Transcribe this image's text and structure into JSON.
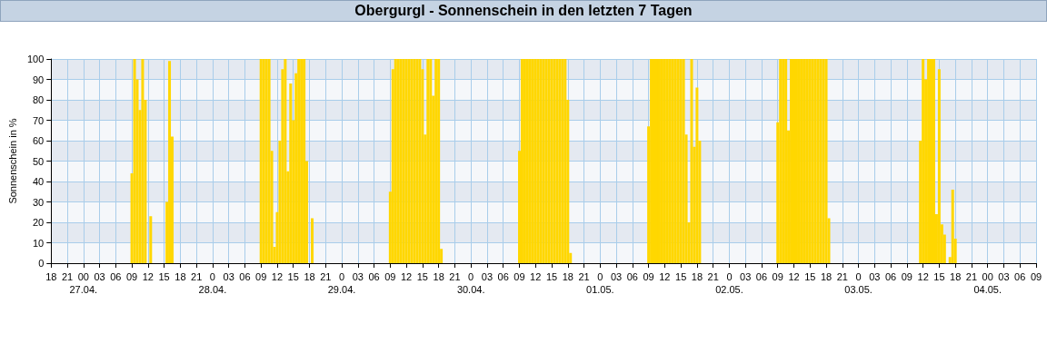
{
  "chart_data": {
    "type": "bar",
    "title": "Obergurgl - Sonnenschein in den letzten 7 Tagen",
    "ylabel": "Sonnenschein in %",
    "series": [
      {
        "color": "#ffd700",
        "x": [
          "--04-27T09:00",
          "--04-27T09:30",
          "--04-27T10:00",
          "--04-27T10:30",
          "--04-27T11:00",
          "--04-27T11:30",
          "--04-27T12:30",
          "--04-27T15:30",
          "--04-27T16:00",
          "--04-27T16:30",
          "--04-28T09:00",
          "--04-28T09:30",
          "--04-28T10:00",
          "--04-28T10:30",
          "--04-28T11:00",
          "--04-28T11:30",
          "--04-28T12:00",
          "--04-28T12:30",
          "--04-28T13:00",
          "--04-28T13:30",
          "--04-28T14:00",
          "--04-28T14:30",
          "--04-28T15:00",
          "--04-28T15:30",
          "--04-28T16:00",
          "--04-28T16:30",
          "--04-28T17:00",
          "--04-28T17:30",
          "--04-28T18:30",
          "--04-29T09:00",
          "--04-29T09:30",
          "--04-29T10:00",
          "--04-29T10:30",
          "--04-29T11:00",
          "--04-29T11:30",
          "--04-29T12:00",
          "--04-29T12:30",
          "--04-29T13:00",
          "--04-29T13:30",
          "--04-29T14:00",
          "--04-29T14:30",
          "--04-29T15:00",
          "--04-29T15:30",
          "--04-29T16:00",
          "--04-29T16:30",
          "--04-29T17:00",
          "--04-29T17:30",
          "--04-29T18:00",
          "--04-29T18:30",
          "--04-30T09:00",
          "--04-30T09:30",
          "--04-30T10:00",
          "--04-30T10:30",
          "--04-30T11:00",
          "--04-30T11:30",
          "--04-30T12:00",
          "--04-30T12:30",
          "--04-30T13:00",
          "--04-30T13:30",
          "--04-30T14:00",
          "--04-30T14:30",
          "--04-30T15:00",
          "--04-30T15:30",
          "--04-30T16:00",
          "--04-30T16:30",
          "--04-30T17:00",
          "--04-30T17:30",
          "--04-30T18:00",
          "--04-30T18:30",
          "--05-01T09:00",
          "--05-01T09:30",
          "--05-01T10:00",
          "--05-01T10:30",
          "--05-01T11:00",
          "--05-01T11:30",
          "--05-01T12:00",
          "--05-01T12:30",
          "--05-01T13:00",
          "--05-01T13:30",
          "--05-01T14:00",
          "--05-01T14:30",
          "--05-01T15:00",
          "--05-01T15:30",
          "--05-01T16:00",
          "--05-01T16:30",
          "--05-01T17:00",
          "--05-01T17:30",
          "--05-01T18:00",
          "--05-01T18:30",
          "--05-02T09:00",
          "--05-02T09:30",
          "--05-02T10:00",
          "--05-02T10:30",
          "--05-02T11:00",
          "--05-02T11:30",
          "--05-02T12:00",
          "--05-02T12:30",
          "--05-02T13:00",
          "--05-02T13:30",
          "--05-02T14:00",
          "--05-02T14:30",
          "--05-02T15:00",
          "--05-02T15:30",
          "--05-02T16:00",
          "--05-02T16:30",
          "--05-02T17:00",
          "--05-02T17:30",
          "--05-02T18:00",
          "--05-02T18:30",
          "--05-03T11:30",
          "--05-03T12:00",
          "--05-03T12:30",
          "--05-03T13:00",
          "--05-03T13:30",
          "--05-03T14:00",
          "--05-03T14:30",
          "--05-03T15:00",
          "--05-03T15:30",
          "--05-03T16:00",
          "--05-03T17:00",
          "--05-03T17:30",
          "--05-03T18:00"
        ],
        "values": [
          44,
          100,
          90,
          75,
          100,
          80,
          23,
          30,
          99,
          62,
          100,
          100,
          100,
          100,
          55,
          8,
          25,
          60,
          95,
          100,
          45,
          88,
          70,
          93,
          100,
          100,
          100,
          50,
          22,
          35,
          95,
          100,
          100,
          100,
          100,
          100,
          100,
          100,
          100,
          100,
          100,
          95,
          63,
          100,
          100,
          82,
          100,
          100,
          7,
          55,
          100,
          100,
          100,
          100,
          100,
          100,
          100,
          100,
          100,
          100,
          100,
          100,
          100,
          100,
          100,
          100,
          100,
          80,
          5,
          67,
          100,
          100,
          100,
          100,
          100,
          100,
          100,
          100,
          100,
          100,
          100,
          100,
          100,
          63,
          20,
          100,
          57,
          86,
          60,
          69,
          100,
          100,
          100,
          65,
          100,
          100,
          100,
          100,
          100,
          100,
          100,
          100,
          100,
          100,
          100,
          100,
          100,
          100,
          22,
          60,
          100,
          90,
          100,
          100,
          100,
          24,
          95,
          19,
          14,
          3,
          36,
          12
        ]
      }
    ],
    "xlim": [
      "--04-26T18:00",
      "--05-04T09:00"
    ],
    "xticks": [
      {
        "value": "--04-26T18:00",
        "label": "18"
      },
      {
        "value": "--04-26T21:00",
        "label": "21"
      },
      {
        "value": "--04-27T00:00",
        "label": "00\n27.04."
      },
      {
        "value": "--04-27T03:00",
        "label": "03"
      },
      {
        "value": "--04-27T06:00",
        "label": "06"
      },
      {
        "value": "--04-27T09:00",
        "label": "09"
      },
      {
        "value": "--04-27T12:00",
        "label": "12"
      },
      {
        "value": "--04-27T15:00",
        "label": "15"
      },
      {
        "value": "--04-27T18:00",
        "label": "18"
      },
      {
        "value": "--04-27T21:00",
        "label": "21"
      },
      {
        "value": "--04-28T00:00",
        "label": "0\n28.04."
      },
      {
        "value": "--04-28T03:00",
        "label": "03"
      },
      {
        "value": "--04-28T06:00",
        "label": "06"
      },
      {
        "value": "--04-28T09:00",
        "label": "09"
      },
      {
        "value": "--04-28T12:00",
        "label": "12"
      },
      {
        "value": "--04-28T15:00",
        "label": "15"
      },
      {
        "value": "--04-28T18:00",
        "label": "18"
      },
      {
        "value": "--04-28T21:00",
        "label": "21"
      },
      {
        "value": "--04-29T00:00",
        "label": "0\n29.04."
      },
      {
        "value": "--04-29T03:00",
        "label": "03"
      },
      {
        "value": "--04-29T06:00",
        "label": "06"
      },
      {
        "value": "--04-29T09:00",
        "label": "09"
      },
      {
        "value": "--04-29T12:00",
        "label": "12"
      },
      {
        "value": "--04-29T15:00",
        "label": "15"
      },
      {
        "value": "--04-29T18:00",
        "label": "18"
      },
      {
        "value": "--04-29T21:00",
        "label": "21"
      },
      {
        "value": "--04-30T00:00",
        "label": "0\n30.04."
      },
      {
        "value": "--04-30T03:00",
        "label": "03"
      },
      {
        "value": "--04-30T06:00",
        "label": "06"
      },
      {
        "value": "--04-30T09:00",
        "label": "09"
      },
      {
        "value": "--04-30T12:00",
        "label": "12"
      },
      {
        "value": "--04-30T15:00",
        "label": "15"
      },
      {
        "value": "--04-30T18:00",
        "label": "18"
      },
      {
        "value": "--04-30T21:00",
        "label": "21"
      },
      {
        "value": "--05-01T00:00",
        "label": "0\n01.05."
      },
      {
        "value": "--05-01T03:00",
        "label": "03"
      },
      {
        "value": "--05-01T06:00",
        "label": "06"
      },
      {
        "value": "--05-01T09:00",
        "label": "09"
      },
      {
        "value": "--05-01T12:00",
        "label": "12"
      },
      {
        "value": "--05-01T15:00",
        "label": "15"
      },
      {
        "value": "--05-01T18:00",
        "label": "18"
      },
      {
        "value": "--05-01T21:00",
        "label": "21"
      },
      {
        "value": "--05-02T00:00",
        "label": "0\n02.05."
      },
      {
        "value": "--05-02T03:00",
        "label": "03"
      },
      {
        "value": "--05-02T06:00",
        "label": "06"
      },
      {
        "value": "--05-02T09:00",
        "label": "09"
      },
      {
        "value": "--05-02T12:00",
        "label": "12"
      },
      {
        "value": "--05-02T15:00",
        "label": "15"
      },
      {
        "value": "--05-02T18:00",
        "label": "18"
      },
      {
        "value": "--05-02T21:00",
        "label": "21"
      },
      {
        "value": "--05-03T00:00",
        "label": "0\n03.05."
      },
      {
        "value": "--05-03T03:00",
        "label": "03"
      },
      {
        "value": "--05-03T06:00",
        "label": "06"
      },
      {
        "value": "--05-03T09:00",
        "label": "09"
      },
      {
        "value": "--05-03T12:00",
        "label": "12"
      },
      {
        "value": "--05-03T15:00",
        "label": "15"
      },
      {
        "value": "--05-03T18:00",
        "label": "18"
      },
      {
        "value": "--05-03T21:00",
        "label": "21"
      },
      {
        "value": "--05-04T00:00",
        "label": "00\n04.05."
      },
      {
        "value": "--05-04T03:00",
        "label": "03"
      },
      {
        "value": "--05-04T06:00",
        "label": "06"
      },
      {
        "value": "--05-04T09:00",
        "label": "09"
      }
    ],
    "ylim": [
      0,
      100
    ],
    "yticks": [
      0,
      10,
      20,
      30,
      40,
      50,
      60,
      70,
      80,
      90,
      100
    ],
    "grid": true
  }
}
